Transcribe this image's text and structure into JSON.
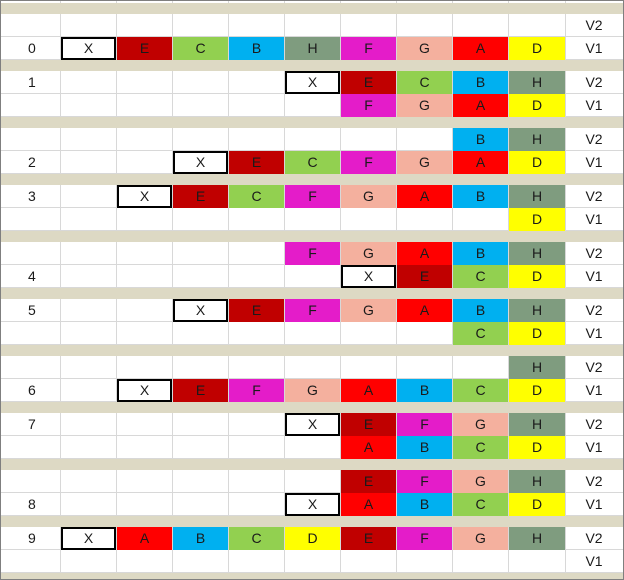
{
  "colors": {
    "X": "#ffffff",
    "E": "#c00000",
    "C": "#92d050",
    "B": "#00b0f0",
    "H": "#7f9c7f",
    "F": "#e41cc9",
    "G": "#f4b09e",
    "A": "#ff0000",
    "D": "#ffff00",
    "separator": "#ddd9c4",
    "gridline": "#d8d8d8"
  },
  "version_labels": {
    "v2": "V2",
    "v1": "V1"
  },
  "blocks": [
    {
      "index": "0",
      "index_on": "V1",
      "v2": [
        "",
        "",
        "",
        "",
        "",
        "",
        "",
        "",
        ""
      ],
      "v1": [
        "X",
        "E",
        "C",
        "B",
        "H",
        "F",
        "G",
        "A",
        "D"
      ]
    },
    {
      "index": "1",
      "index_on": "V2",
      "v2": [
        "",
        "",
        "",
        "",
        "X",
        "E",
        "C",
        "B",
        "H"
      ],
      "v1": [
        "",
        "",
        "",
        "",
        "",
        "F",
        "G",
        "A",
        "D"
      ]
    },
    {
      "index": "2",
      "index_on": "V1",
      "v2": [
        "",
        "",
        "",
        "",
        "",
        "",
        "",
        "B",
        "H"
      ],
      "v1": [
        "",
        "",
        "X",
        "E",
        "C",
        "F",
        "G",
        "A",
        "D"
      ]
    },
    {
      "index": "3",
      "index_on": "V2",
      "v2": [
        "",
        "X",
        "E",
        "C",
        "F",
        "G",
        "A",
        "B",
        "H"
      ],
      "v1": [
        "",
        "",
        "",
        "",
        "",
        "",
        "",
        "",
        "D"
      ]
    },
    {
      "index": "4",
      "index_on": "V1",
      "v2": [
        "",
        "",
        "",
        "",
        "F",
        "G",
        "A",
        "B",
        "H"
      ],
      "v1": [
        "",
        "",
        "",
        "",
        "",
        "X",
        "E",
        "C",
        "D"
      ]
    },
    {
      "index": "5",
      "index_on": "V2",
      "v2": [
        "",
        "",
        "X",
        "E",
        "F",
        "G",
        "A",
        "B",
        "H"
      ],
      "v1": [
        "",
        "",
        "",
        "",
        "",
        "",
        "",
        "C",
        "D"
      ]
    },
    {
      "index": "6",
      "index_on": "V1",
      "v2": [
        "",
        "",
        "",
        "",
        "",
        "",
        "",
        "",
        "H"
      ],
      "v1": [
        "",
        "X",
        "E",
        "F",
        "G",
        "A",
        "B",
        "C",
        "D"
      ]
    },
    {
      "index": "7",
      "index_on": "V2",
      "v2": [
        "",
        "",
        "",
        "",
        "X",
        "E",
        "F",
        "G",
        "H"
      ],
      "v1": [
        "",
        "",
        "",
        "",
        "",
        "A",
        "B",
        "C",
        "D"
      ]
    },
    {
      "index": "8",
      "index_on": "V1",
      "v2": [
        "",
        "",
        "",
        "",
        "",
        "E",
        "F",
        "G",
        "H"
      ],
      "v1": [
        "",
        "",
        "",
        "",
        "X",
        "A",
        "B",
        "C",
        "D"
      ]
    },
    {
      "index": "9",
      "index_on": "V2",
      "v2": [
        "X",
        "A",
        "B",
        "C",
        "D",
        "E",
        "F",
        "G",
        "H"
      ],
      "v1": [
        "",
        "",
        "",
        "",
        "",
        "",
        "",
        "",
        ""
      ]
    }
  ]
}
